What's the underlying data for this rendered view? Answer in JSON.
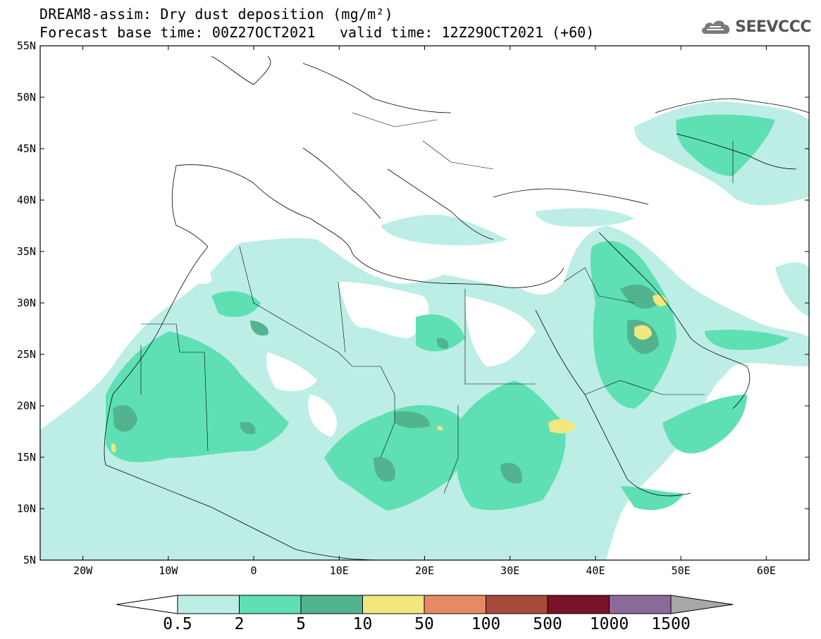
{
  "header": {
    "title": "DREAM8-assim: Dry dust deposition (mg/m²)",
    "base_time": "Forecast base time: 00Z27OCT2021",
    "valid_time": "valid time: 12Z29OCT2021 (+60)",
    "logo_text": "SEEVCCC",
    "logo_icon": "cloud-icon"
  },
  "axes": {
    "lat_ticks": [
      "55N",
      "50N",
      "45N",
      "40N",
      "35N",
      "30N",
      "25N",
      "20N",
      "15N",
      "10N",
      "5N"
    ],
    "lon_ticks": [
      "20W",
      "10W",
      "0",
      "10E",
      "20E",
      "30E",
      "40E",
      "50E",
      "60E"
    ],
    "lat_values": [
      55,
      50,
      45,
      40,
      35,
      30,
      25,
      20,
      15,
      10,
      5
    ],
    "lon_values": [
      -20,
      -10,
      0,
      10,
      20,
      30,
      40,
      50,
      60
    ],
    "lon_range": [
      -25,
      65
    ],
    "lat_range": [
      5,
      55
    ]
  },
  "colorbar": {
    "labels": [
      "0.5",
      "2",
      "5",
      "10",
      "50",
      "100",
      "500",
      "1000",
      "1500"
    ],
    "colors": [
      "#bdeee6",
      "#5ee0b4",
      "#52b48f",
      "#f2e77e",
      "#e58a64",
      "#a84a3c",
      "#7a1228",
      "#8a6a9a",
      "#a8a8a8"
    ]
  }
}
